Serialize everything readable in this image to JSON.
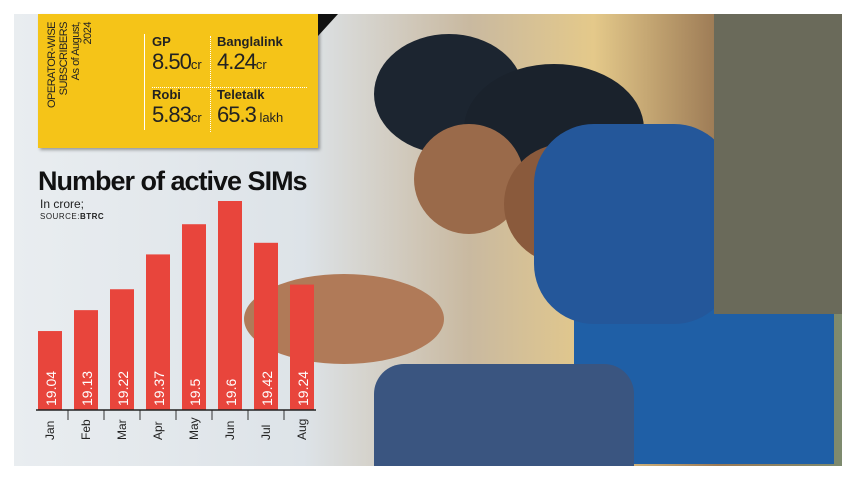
{
  "panel": {
    "heading_line1": "OPERATOR-WISE",
    "heading_line2": "SUBSCRIBERS",
    "heading_line3": "As of August,",
    "heading_line4": "2024",
    "operators": [
      {
        "name": "GP",
        "value": "8.50",
        "unit": "cr"
      },
      {
        "name": "Banglalink",
        "value": "4.24",
        "unit": "cr"
      },
      {
        "name": "Robi",
        "value": "5.83",
        "unit": "cr"
      },
      {
        "name": "Teletalk",
        "value": "65.3",
        "unit": " lakh"
      }
    ],
    "color": "#f5c418"
  },
  "chart_data": {
    "type": "bar",
    "title": "Number of active SIMs",
    "subtitle": "In crore;",
    "source_label": "SOURCE:",
    "source": "BTRC",
    "categories": [
      "Jan",
      "Feb",
      "Mar",
      "Apr",
      "May",
      "Jun",
      "Jul",
      "Aug"
    ],
    "values": [
      19.04,
      19.13,
      19.22,
      19.37,
      19.5,
      19.6,
      19.42,
      19.24
    ],
    "ylim": [
      18.7,
      19.6
    ],
    "bar_color": "#e8453c",
    "data_labels": "inside, rotated",
    "grid": false
  }
}
